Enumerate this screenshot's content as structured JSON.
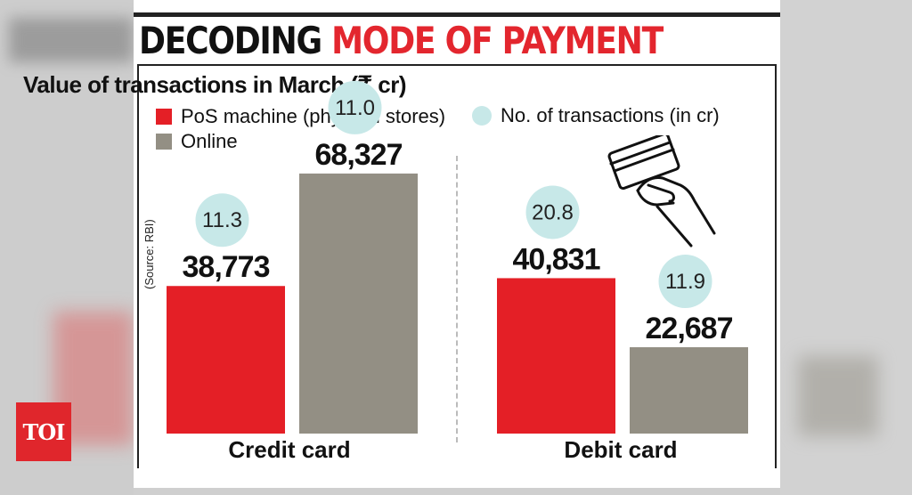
{
  "header": {
    "title_part1": "DECODING",
    "title_part2": "MODE OF PAYMENT"
  },
  "logo": {
    "text": "TOI"
  },
  "chart_data": {
    "type": "bar",
    "title": "Value of transactions in March (₹ cr)",
    "source": "(Source: RBI)",
    "categories": [
      "Credit card",
      "Debit card"
    ],
    "series": [
      {
        "name": "PoS machine (physical stores)",
        "values": [
          38773,
          40831
        ],
        "value_labels": [
          "38,773",
          "40,831"
        ],
        "transactions": [
          11.3,
          20.8
        ],
        "transaction_labels": [
          "11.3",
          "20.8"
        ],
        "color": "#e41f26"
      },
      {
        "name": "Online",
        "values": [
          68327,
          22687
        ],
        "value_labels": [
          "68,327",
          "22,687"
        ],
        "transactions": [
          11.0,
          11.9
        ],
        "transaction_labels": [
          "11.0",
          "11.9"
        ],
        "color": "#938f84"
      }
    ],
    "bubble_legend": "No. of transactions (in cr)",
    "bubble_color": "#c7e8e8",
    "ylim": [
      0,
      80000
    ],
    "grid": false,
    "legend_position": "top-left"
  },
  "icons": {
    "card_hand": "hand-holding-card-icon"
  }
}
